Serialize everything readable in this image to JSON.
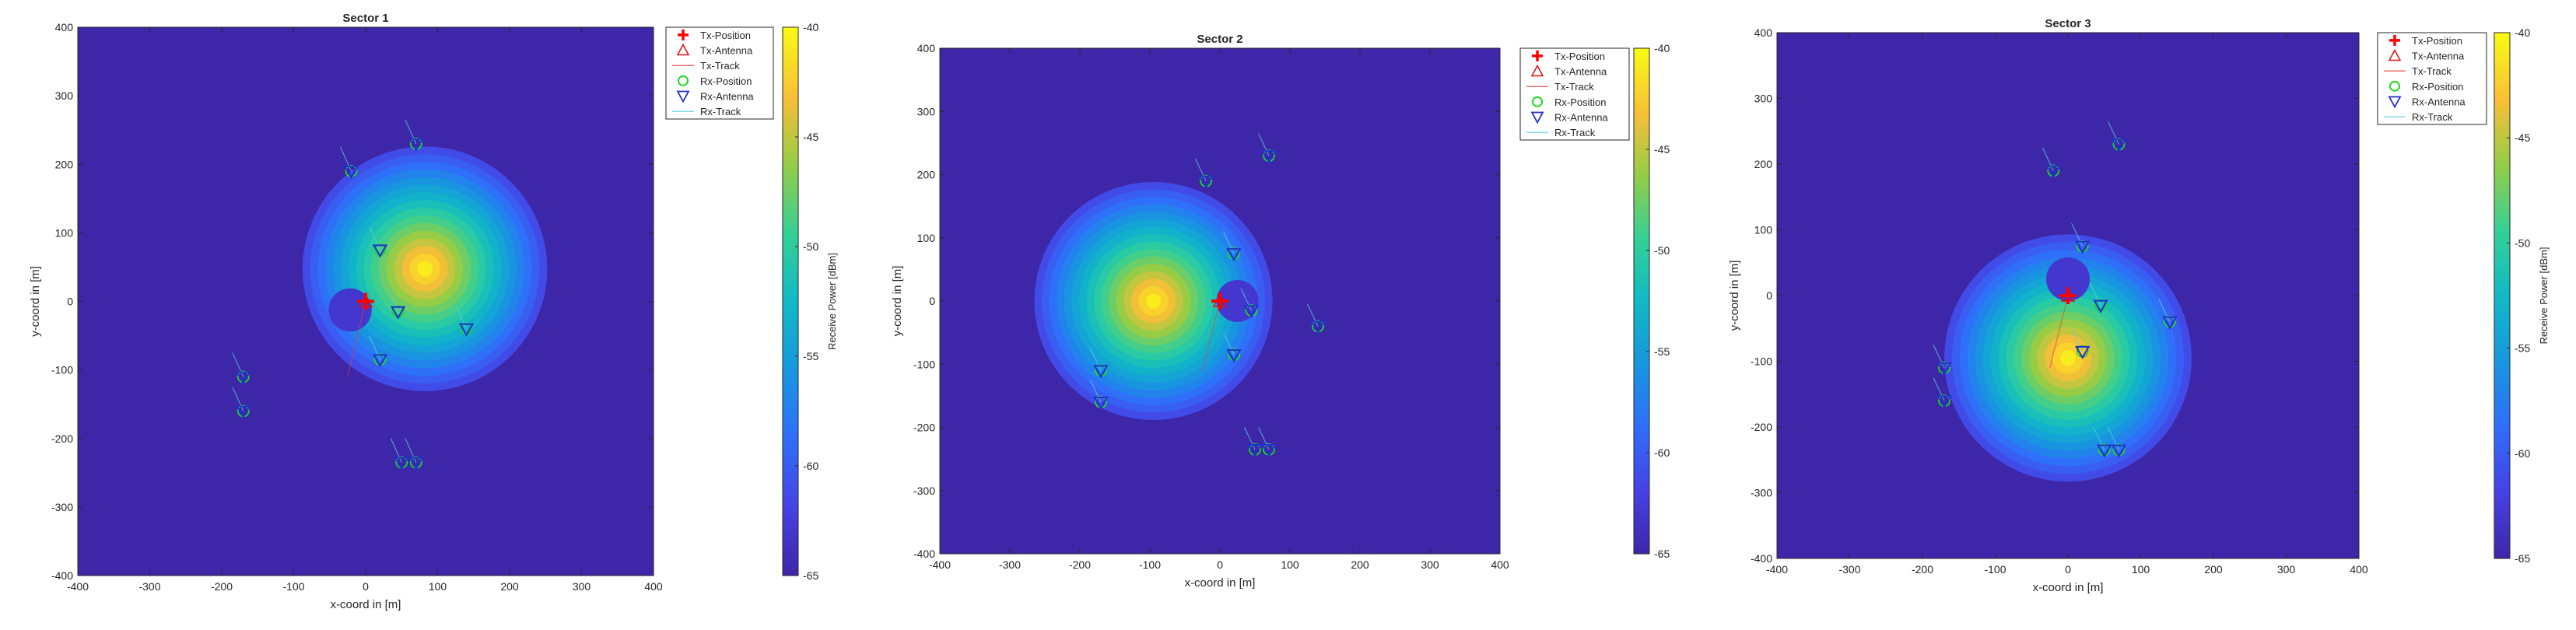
{
  "figure": {
    "panels": [
      {
        "title": "Sector 1",
        "xlabel": "x-coord in [m]",
        "ylabel": "y-coord in [m]",
        "colorbar_label": "Receive Power [dBm]"
      },
      {
        "title": "Sector 2",
        "xlabel": "x-coord in [m]",
        "ylabel": "y-coord in [m]",
        "colorbar_label": ""
      },
      {
        "title": "Sector 3",
        "xlabel": "x-coord in [m]",
        "ylabel": "y-coord in [m]",
        "colorbar_label": "Receive Power [dBm]"
      }
    ],
    "legend": [
      "Tx-Position",
      "Tx-Antenna",
      "Tx-Track",
      "Rx-Position",
      "Rx-Antenna",
      "Rx-Track"
    ]
  },
  "chart_data": [
    {
      "type": "heatmap",
      "title": "Sector 1",
      "xlabel": "x-coord in [m]",
      "ylabel": "y-coord in [m]",
      "xlim": [
        -400,
        400
      ],
      "ylim": [
        -400,
        400
      ],
      "xticks": [
        -400,
        -300,
        -200,
        -100,
        0,
        100,
        200,
        300,
        400
      ],
      "yticks": [
        -400,
        -300,
        -200,
        -100,
        0,
        100,
        200,
        300,
        400
      ],
      "colorbar": {
        "label": "Receive Power [dBm]",
        "range": [
          -65,
          -40
        ],
        "ticks": [
          -40,
          -45,
          -50,
          -55,
          -60,
          -65
        ],
        "colormap": "parula"
      },
      "beam_direction_deg": 30,
      "tx_position": [
        0,
        0
      ],
      "rx_positions": [
        [
          -170,
          -110
        ],
        [
          -170,
          -160
        ],
        [
          -20,
          190
        ],
        [
          70,
          230
        ],
        [
          20,
          75
        ],
        [
          45,
          -15
        ],
        [
          140,
          -40
        ],
        [
          20,
          -85
        ],
        [
          50,
          -235
        ],
        [
          70,
          -235
        ]
      ],
      "legend": [
        "Tx-Position",
        "Tx-Antenna",
        "Tx-Track",
        "Rx-Position",
        "Rx-Antenna",
        "Rx-Track"
      ],
      "grid": false
    },
    {
      "type": "heatmap",
      "title": "Sector 2",
      "xlabel": "x-coord in [m]",
      "ylabel": "y-coord in [m]",
      "xlim": [
        -400,
        400
      ],
      "ylim": [
        -400,
        400
      ],
      "xticks": [
        -400,
        -300,
        -200,
        -100,
        0,
        100,
        200,
        300,
        400
      ],
      "yticks": [
        -400,
        -300,
        -200,
        -100,
        0,
        100,
        200,
        300,
        400
      ],
      "colorbar": {
        "label": "",
        "range": [
          -65,
          -40
        ],
        "ticks": [
          -40,
          -45,
          -50,
          -55,
          -60,
          -65
        ],
        "colormap": "parula"
      },
      "beam_direction_deg": 180,
      "tx_position": [
        0,
        0
      ],
      "rx_positions": [
        [
          -170,
          -110
        ],
        [
          -170,
          -160
        ],
        [
          -20,
          190
        ],
        [
          70,
          230
        ],
        [
          20,
          75
        ],
        [
          45,
          -15
        ],
        [
          140,
          -40
        ],
        [
          20,
          -85
        ],
        [
          50,
          -235
        ],
        [
          70,
          -235
        ]
      ],
      "legend": [
        "Tx-Position",
        "Tx-Antenna",
        "Tx-Track",
        "Rx-Position",
        "Rx-Antenna",
        "Rx-Track"
      ],
      "grid": false
    },
    {
      "type": "heatmap",
      "title": "Sector 3",
      "xlabel": "x-coord in [m]",
      "ylabel": "y-coord in [m]",
      "xlim": [
        -400,
        400
      ],
      "ylim": [
        -400,
        400
      ],
      "xticks": [
        -400,
        -300,
        -200,
        -100,
        0,
        100,
        200,
        300,
        400
      ],
      "yticks": [
        -400,
        -300,
        -200,
        -100,
        0,
        100,
        200,
        300,
        400
      ],
      "colorbar": {
        "label": "Receive Power [dBm]",
        "range": [
          -65,
          -40
        ],
        "ticks": [
          -40,
          -45,
          -50,
          -55,
          -60,
          -65
        ],
        "colormap": "parula"
      },
      "beam_direction_deg": -90,
      "tx_position": [
        0,
        0
      ],
      "rx_positions": [
        [
          -170,
          -110
        ],
        [
          -170,
          -160
        ],
        [
          -20,
          190
        ],
        [
          70,
          230
        ],
        [
          20,
          75
        ],
        [
          45,
          -15
        ],
        [
          140,
          -40
        ],
        [
          20,
          -85
        ],
        [
          50,
          -235
        ],
        [
          70,
          -235
        ]
      ],
      "legend": [
        "Tx-Position",
        "Tx-Antenna",
        "Tx-Track",
        "Rx-Position",
        "Rx-Antenna",
        "Rx-Track"
      ],
      "grid": false
    }
  ]
}
